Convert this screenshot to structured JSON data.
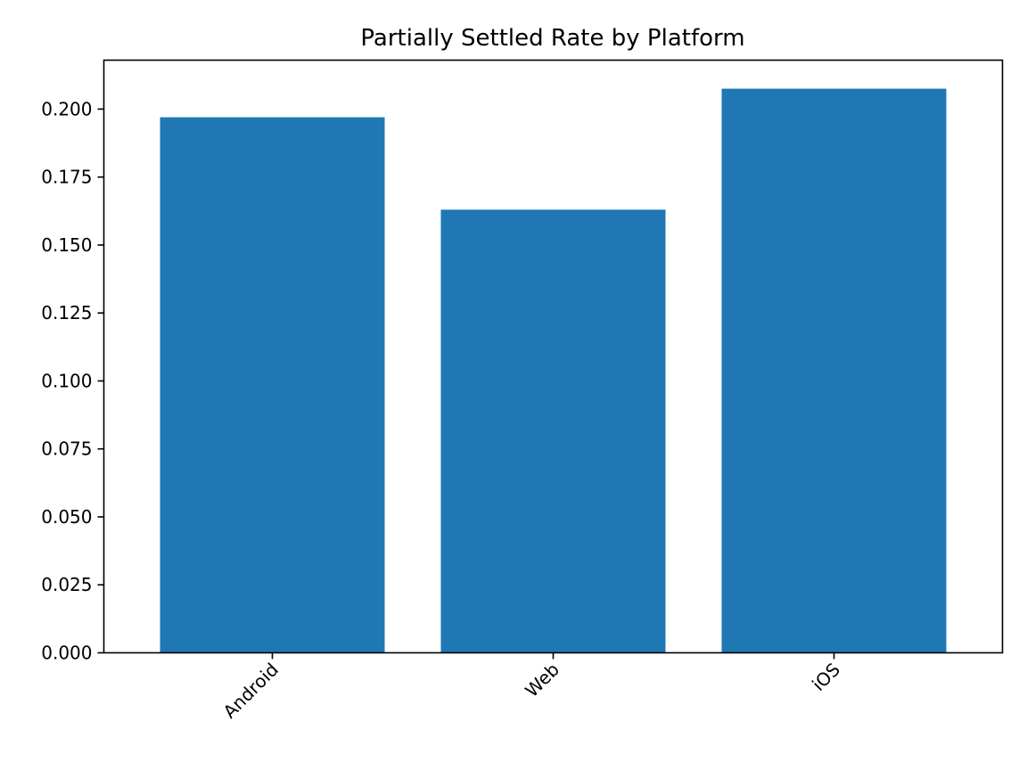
{
  "chart_data": {
    "type": "bar",
    "title": "Partially Settled Rate by Platform",
    "xlabel": "",
    "ylabel": "",
    "categories": [
      "Android",
      "Web",
      "iOS"
    ],
    "values": [
      0.197,
      0.163,
      0.2075
    ],
    "ylim": [
      0,
      0.218
    ],
    "yticks": [
      0.0,
      0.025,
      0.05,
      0.075,
      0.1,
      0.125,
      0.15,
      0.175,
      0.2
    ],
    "ytick_labels": [
      "0.000",
      "0.025",
      "0.050",
      "0.075",
      "0.100",
      "0.125",
      "0.150",
      "0.175",
      "0.200"
    ],
    "bar_color": "#1f77b4",
    "grid": false,
    "legend": "none",
    "xtick_rotation_deg": 45
  }
}
